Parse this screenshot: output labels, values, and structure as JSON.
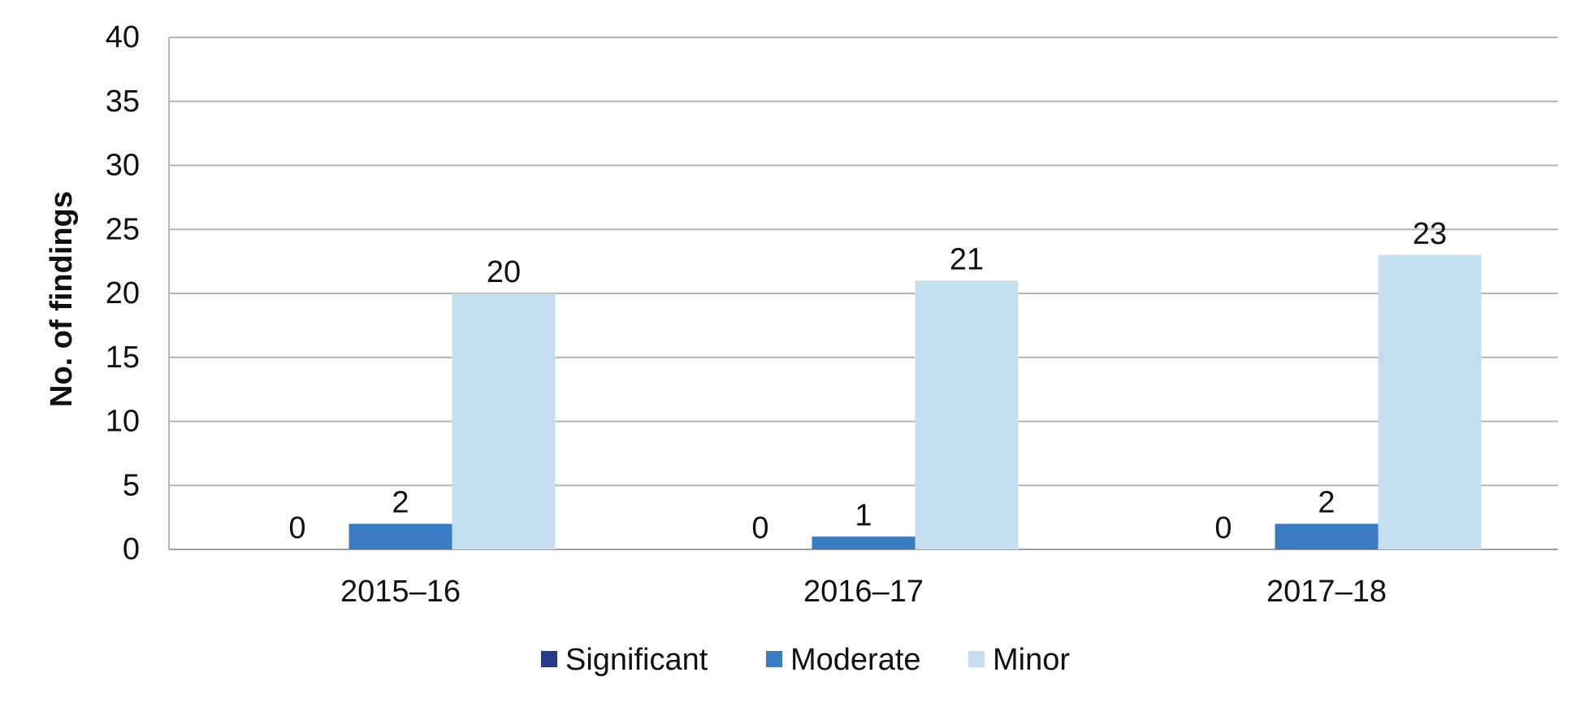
{
  "chart_data": {
    "type": "bar",
    "categories": [
      "2015–16",
      "2016–17",
      "2017–18"
    ],
    "series": [
      {
        "name": "Significant",
        "color": "#263b8a",
        "values": [
          0,
          0,
          0
        ]
      },
      {
        "name": "Moderate",
        "color": "#3a7cc4",
        "values": [
          2,
          1,
          2
        ]
      },
      {
        "name": "Minor",
        "color": "#c5dff1",
        "values": [
          20,
          21,
          23
        ]
      }
    ],
    "ylabel": "No. of findings",
    "xlabel": "",
    "ylim": [
      0,
      40
    ],
    "yticks": [
      "0",
      "5",
      "10",
      "15",
      "20",
      "25",
      "30",
      "35",
      "40"
    ],
    "grid": true,
    "legend": "bottom",
    "data_labels": true
  }
}
